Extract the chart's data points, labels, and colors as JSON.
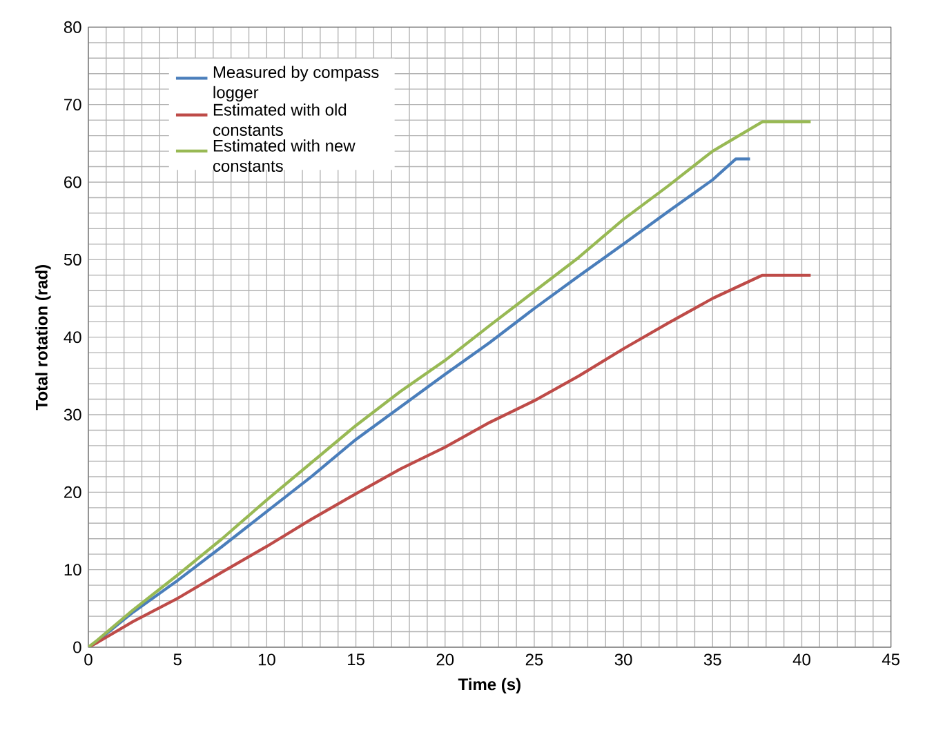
{
  "chart_data": {
    "type": "line",
    "xlabel": "Time (s)",
    "ylabel": "Total rotation (rad)",
    "xlim": [
      0,
      45
    ],
    "ylim": [
      0,
      80
    ],
    "xticks": [
      0,
      5,
      10,
      15,
      20,
      25,
      30,
      35,
      40,
      45
    ],
    "yticks": [
      0,
      10,
      20,
      30,
      40,
      50,
      60,
      70,
      80
    ],
    "grid": true,
    "legend": "top left",
    "marker": "none",
    "line_style": "solid",
    "series": [
      {
        "name": "Measured by compass logger",
        "color": "#4a7ebb",
        "x": [
          0,
          0.5,
          2.5,
          5,
          7.5,
          10,
          12.5,
          15,
          17.5,
          20,
          22.5,
          25,
          27.5,
          30,
          32.5,
          35,
          36.3,
          37.1
        ],
        "values": [
          0,
          0.8,
          4.5,
          8.6,
          13,
          17.5,
          22,
          26.8,
          31,
          35.2,
          39.3,
          43.7,
          47.9,
          52,
          56.2,
          60.3,
          63,
          63
        ]
      },
      {
        "name": "Estimated with old constants",
        "color": "#be4b48",
        "x": [
          0,
          0.5,
          2.5,
          5,
          7.5,
          10,
          12.5,
          15,
          17.5,
          20,
          22.5,
          25,
          27.5,
          30,
          32.5,
          35,
          37.8,
          40.5
        ],
        "values": [
          0,
          0.6,
          3.3,
          6.3,
          9.7,
          13,
          16.5,
          19.8,
          23,
          25.8,
          29,
          31.8,
          35,
          38.5,
          41.8,
          45,
          48,
          48
        ]
      },
      {
        "name": "Estimated with new constants",
        "color": "#98b954",
        "x": [
          0,
          0.5,
          2.5,
          5,
          7.5,
          10,
          12.5,
          15,
          17.5,
          20,
          22.5,
          25,
          27.5,
          30,
          32.5,
          35,
          37.8,
          40.5
        ],
        "values": [
          0,
          0.9,
          4.8,
          9.3,
          14,
          19,
          23.8,
          28.6,
          33,
          37,
          41.5,
          45.9,
          50.3,
          55.2,
          59.5,
          64,
          67.8,
          67.8
        ]
      }
    ]
  }
}
